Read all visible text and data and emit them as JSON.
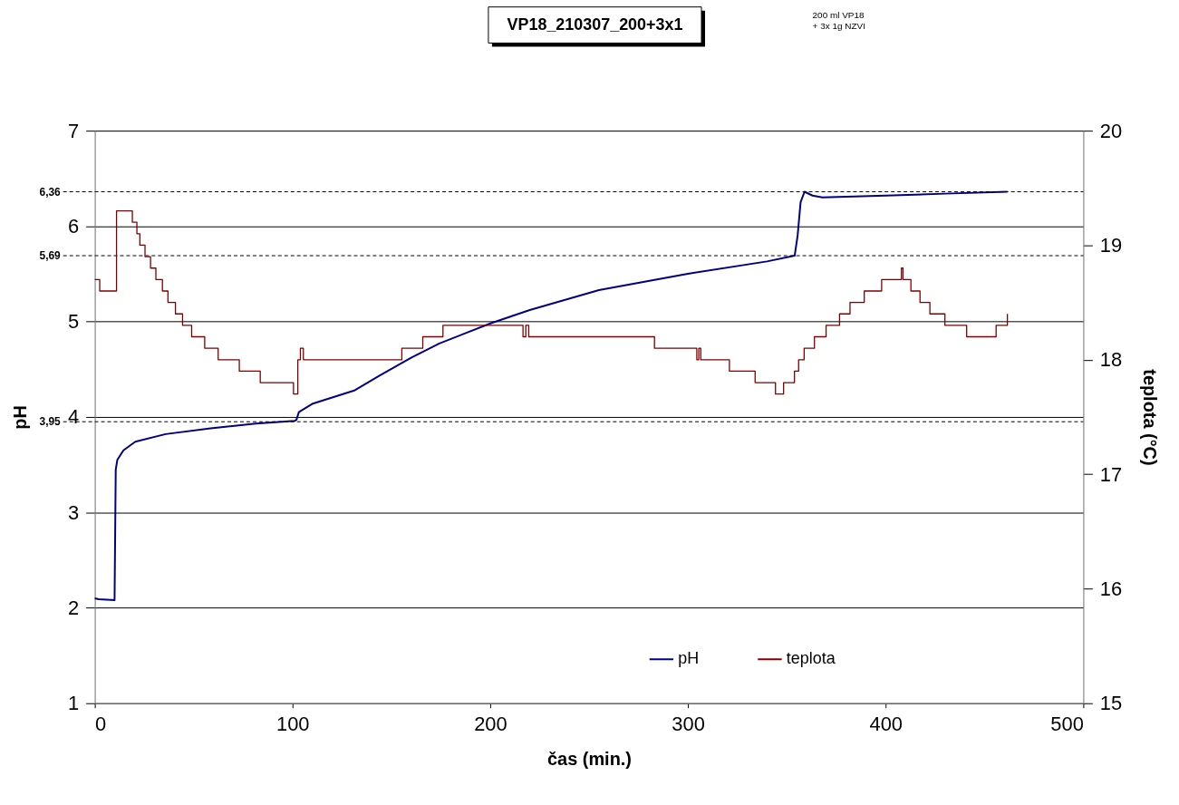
{
  "chart_data": {
    "type": "line",
    "title": "VP18_210307_200+3x1",
    "subtitle": "200 ml VP18\n+ 3x 1g NZVI",
    "xlabel": "čas (min.)",
    "ylabel": "pH",
    "y2label": "teplota (°C)",
    "xlim": [
      0,
      500
    ],
    "xticks": [
      0,
      100,
      200,
      300,
      400,
      500
    ],
    "ylim": [
      1,
      7
    ],
    "yticks": [
      1,
      2,
      3,
      4,
      5,
      6,
      7
    ],
    "y2lim": [
      15,
      20
    ],
    "y2ticks": [
      15,
      16,
      17,
      18,
      19,
      20
    ],
    "grid": "y",
    "legend": "bottom",
    "series": [
      {
        "name": "pH",
        "color": "#000080",
        "x": [
          0,
          2,
          10,
          10.6,
          11.4,
          14.5,
          20.5,
          35.8,
          58.6,
          81.4,
          101.2,
          102,
          103.2,
          110.3,
          131.6,
          143.8,
          160,
          174.3,
          200.1,
          220,
          255,
          300,
          340,
          354,
          355.5,
          357,
          359,
          363,
          368,
          400,
          430,
          461.6
        ],
        "values": [
          2.1,
          2.09,
          2.08,
          3.45,
          3.55,
          3.65,
          3.74,
          3.82,
          3.88,
          3.93,
          3.96,
          3.97,
          4.05,
          4.14,
          4.28,
          4.43,
          4.62,
          4.77,
          4.98,
          5.12,
          5.33,
          5.5,
          5.63,
          5.69,
          5.9,
          6.25,
          6.36,
          6.32,
          6.3,
          6.32,
          6.34,
          6.36
        ]
      },
      {
        "name": "teplota",
        "type": "step",
        "axis": "y2",
        "color": "#800000",
        "x": [
          0,
          2.5,
          11,
          19,
          21.3,
          22.8,
          25.4,
          28.2,
          30.9,
          34.2,
          37,
          40.8,
          44.4,
          49,
          55.6,
          62.4,
          73.1,
          83.7,
          100.5,
          102.7,
          104,
          105.5,
          155.3,
          165.9,
          176.1,
          216.6,
          218,
          219.5,
          283.1,
          304.5,
          305.5,
          306.5,
          321,
          334,
          344.3,
          348.4,
          353.9,
          356,
          358.8,
          364,
          369.9,
          376.7,
          382,
          389.2,
          398,
          408,
          408.8,
          412.8,
          417.4,
          422.4,
          430,
          441,
          455.9,
          461.6
        ],
        "values": [
          18.7,
          18.6,
          19.3,
          19.2,
          19.1,
          19.0,
          18.9,
          18.8,
          18.7,
          18.6,
          18.5,
          18.4,
          18.3,
          18.2,
          18.1,
          18.0,
          17.9,
          17.8,
          17.7,
          18.0,
          18.1,
          18.0,
          18.1,
          18.2,
          18.3,
          18.2,
          18.3,
          18.2,
          18.1,
          18.0,
          18.1,
          18.0,
          17.9,
          17.8,
          17.7,
          17.8,
          17.9,
          18.0,
          18.1,
          18.2,
          18.3,
          18.4,
          18.5,
          18.6,
          18.7,
          18.8,
          18.7,
          18.6,
          18.5,
          18.4,
          18.3,
          18.2,
          18.3,
          18.4
        ]
      }
    ],
    "ref_lines": [
      {
        "axis": "y",
        "value": 6.36,
        "label": "6,36",
        "line_style": "dashed"
      },
      {
        "axis": "y",
        "value": 5.69,
        "label": "5,69",
        "line_style": "dashed"
      },
      {
        "axis": "y",
        "value": 3.95,
        "label": "3,95",
        "line_style": "dashed"
      }
    ]
  }
}
